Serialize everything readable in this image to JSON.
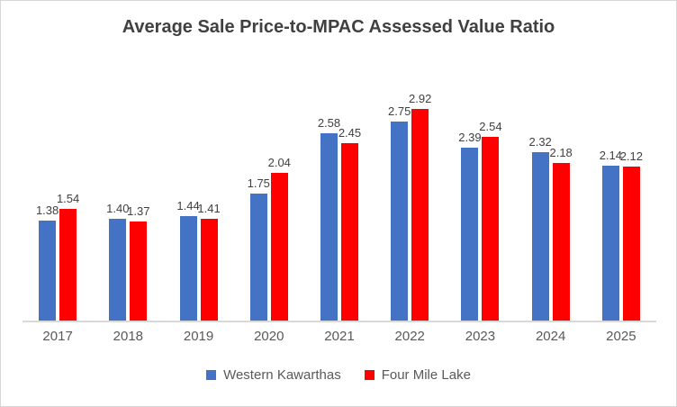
{
  "chart_data": {
    "type": "bar",
    "title": "Average Sale Price-to-MPAC Assessed Value Ratio",
    "categories": [
      "2017",
      "2018",
      "2019",
      "2020",
      "2021",
      "2022",
      "2023",
      "2024",
      "2025"
    ],
    "series": [
      {
        "name": "Western Kawarthas",
        "color": "#4472C4",
        "values": [
          1.38,
          1.4,
          1.44,
          1.75,
          2.58,
          2.75,
          2.39,
          2.32,
          2.14
        ]
      },
      {
        "name": "Four Mile Lake",
        "color": "#FF0000",
        "values": [
          1.54,
          1.37,
          1.41,
          2.04,
          2.45,
          2.92,
          2.54,
          2.18,
          2.12
        ]
      }
    ],
    "xlabel": "",
    "ylabel": "",
    "ylim": [
      0,
      3
    ],
    "gridlines": false,
    "data_labels": true,
    "data_label_format": "0.00",
    "legend_position": "bottom",
    "axis_line_color": "#D9D9D9",
    "text_color": "#595959",
    "title_color": "#404040"
  }
}
